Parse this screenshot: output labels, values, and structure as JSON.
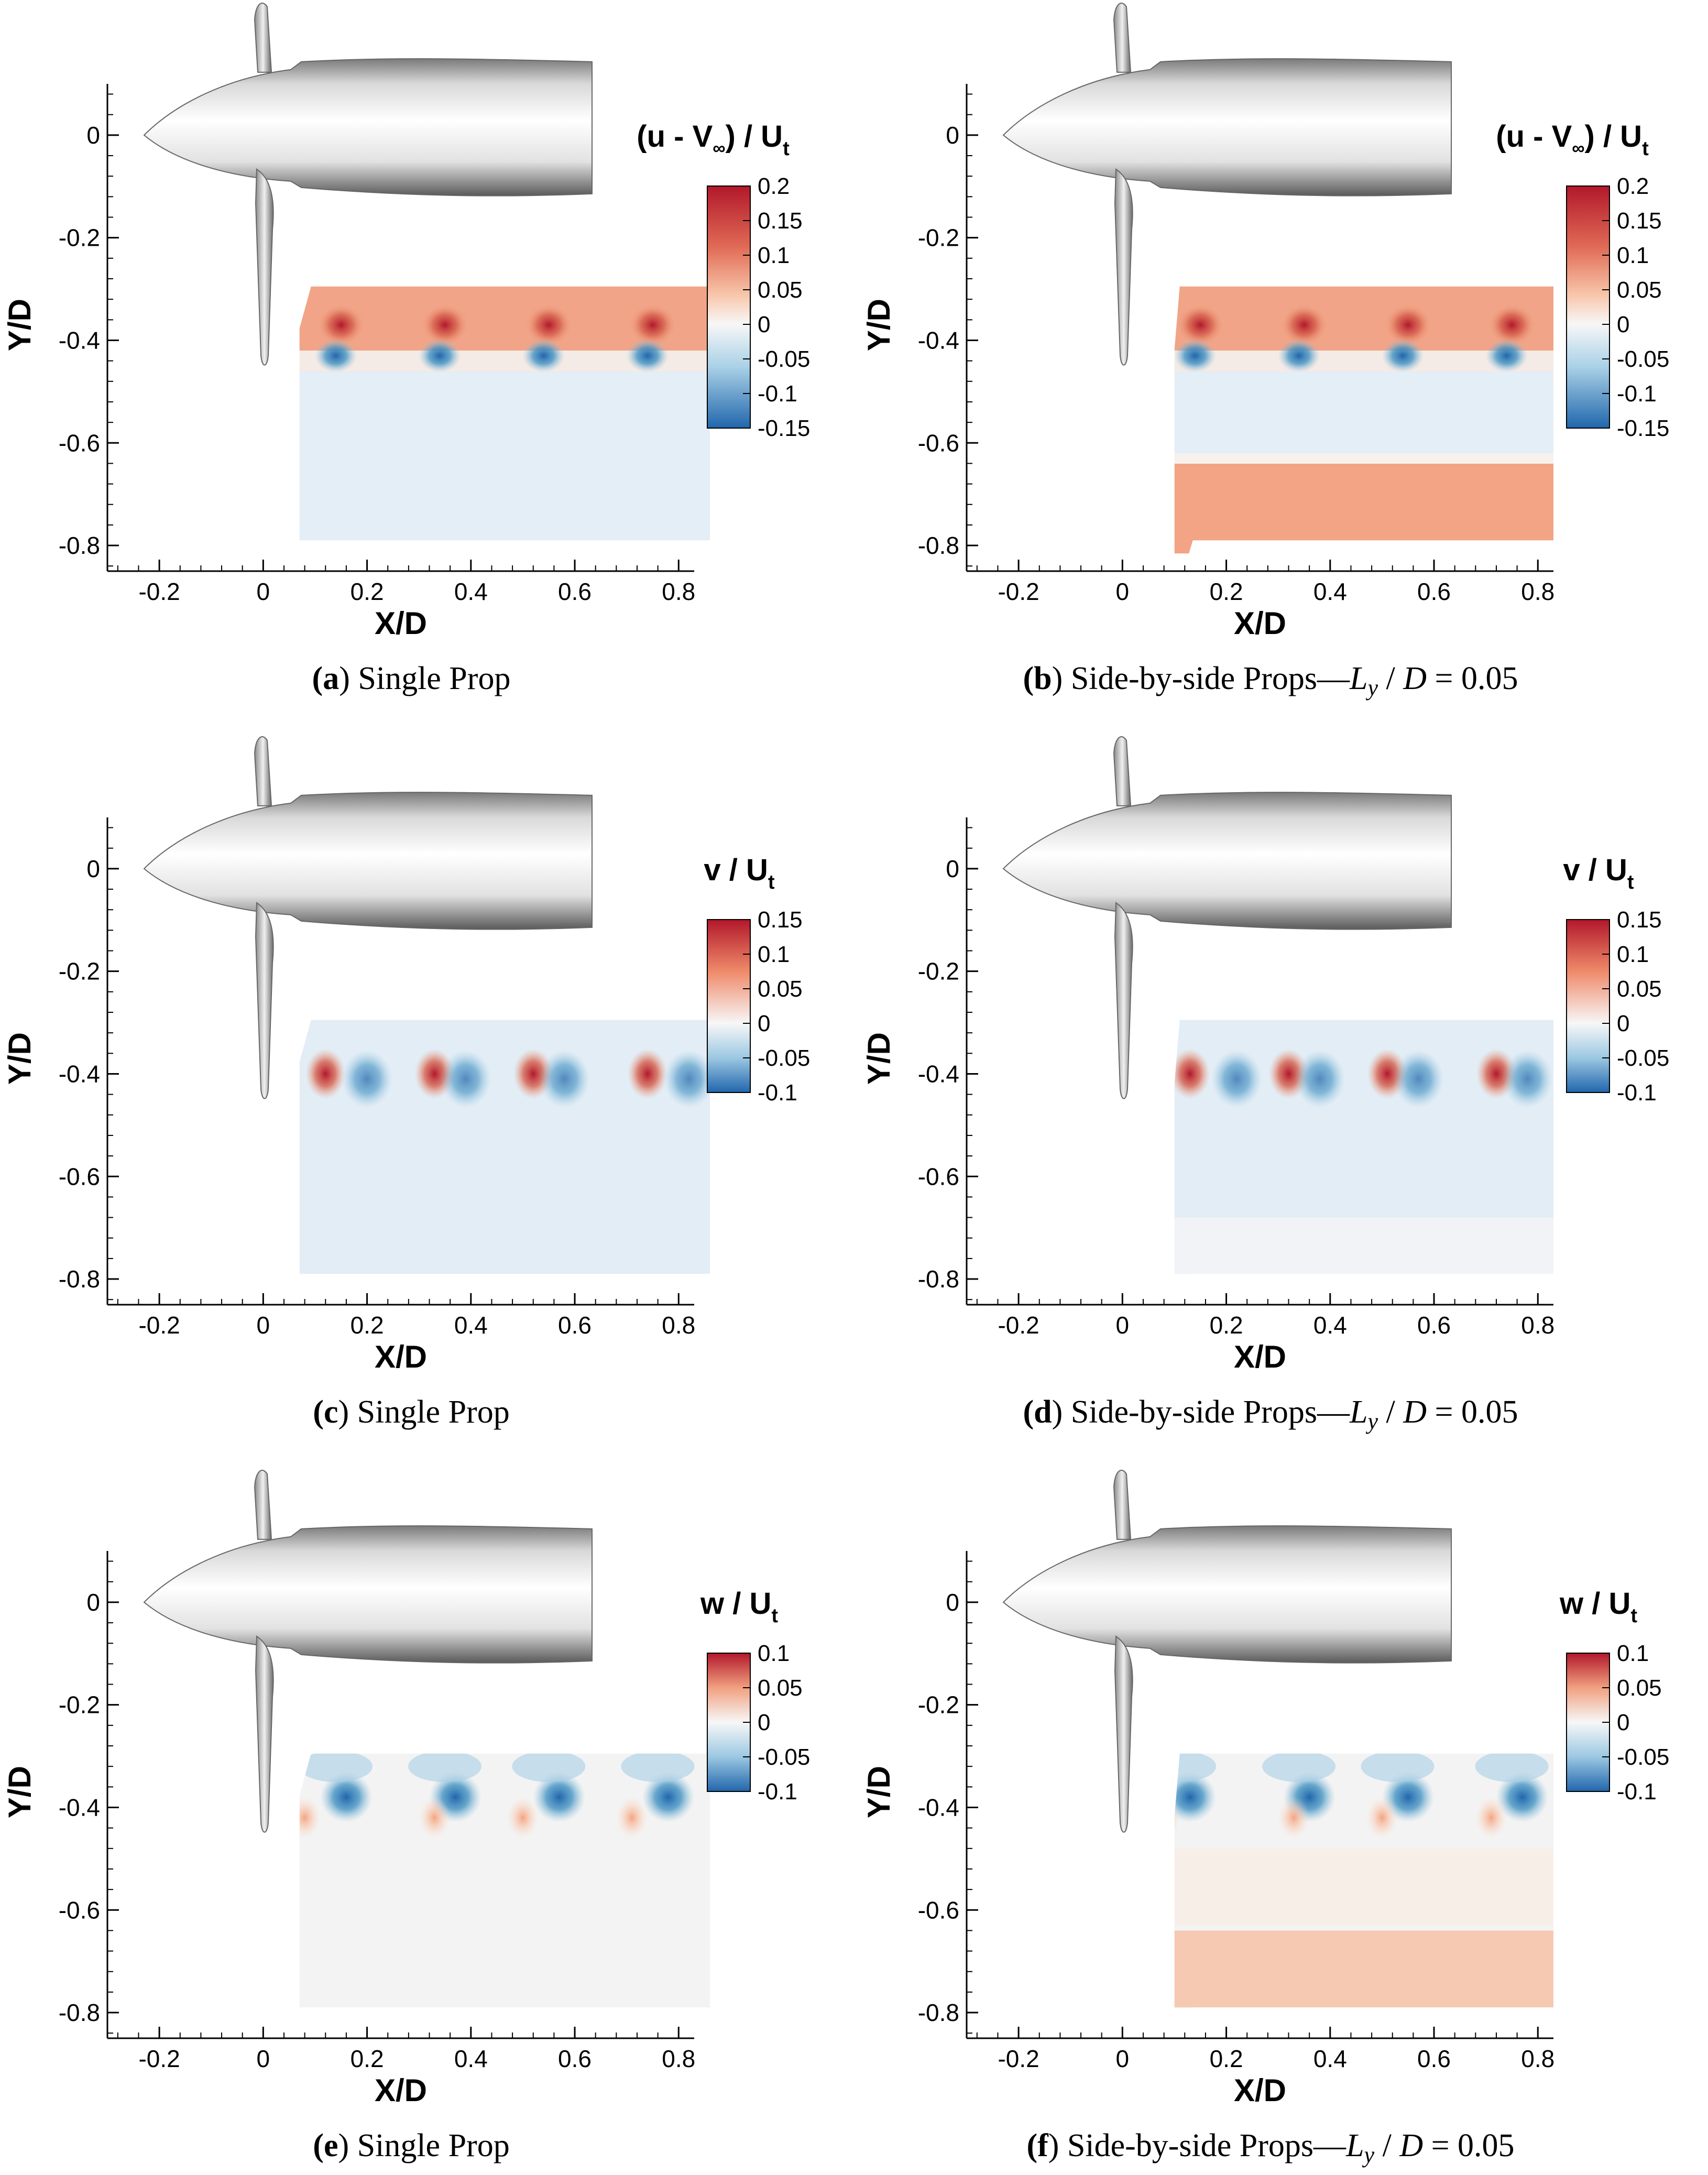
{
  "panels": [
    {
      "id": "a",
      "caption_label": "(a)",
      "caption_text": "Single Prop",
      "caption_math": "",
      "colorbar_title_main": "(u - V",
      "colorbar_title_sub": "∞",
      "colorbar_title_end": ") / U",
      "colorbar_title_sub2": "t",
      "colorbar_ticks": [
        "0.2",
        "0.15",
        "0.1",
        "0.05",
        "0",
        "-0.05",
        "-0.1",
        "-0.15"
      ],
      "variant": "single",
      "field": "u"
    },
    {
      "id": "b",
      "caption_label": "(b)",
      "caption_text": "Side-by-side Props—",
      "caption_math": "L",
      "caption_math_sub": "y",
      "caption_math_end": "/D = 0.05",
      "colorbar_title_main": "(u - V",
      "colorbar_title_sub": "∞",
      "colorbar_title_end": ") / U",
      "colorbar_title_sub2": "t",
      "colorbar_ticks": [
        "0.2",
        "0.15",
        "0.1",
        "0.05",
        "0",
        "-0.05",
        "-0.1",
        "-0.15"
      ],
      "variant": "side",
      "field": "u"
    },
    {
      "id": "c",
      "caption_label": "(c)",
      "caption_text": "Single Prop",
      "caption_math": "",
      "colorbar_title_main": "v / U",
      "colorbar_title_sub": "",
      "colorbar_title_end": "",
      "colorbar_title_sub2": "t",
      "colorbar_ticks": [
        "0.15",
        "0.1",
        "0.05",
        "0",
        "-0.05",
        "-0.1"
      ],
      "variant": "single",
      "field": "v"
    },
    {
      "id": "d",
      "caption_label": "(d)",
      "caption_text": "Side-by-side Props—",
      "caption_math": "L",
      "caption_math_sub": "y",
      "caption_math_end": "/D = 0.05",
      "colorbar_title_main": "v / U",
      "colorbar_title_sub": "",
      "colorbar_title_end": "",
      "colorbar_title_sub2": "t",
      "colorbar_ticks": [
        "0.15",
        "0.1",
        "0.05",
        "0",
        "-0.05",
        "-0.1"
      ],
      "variant": "side",
      "field": "v"
    },
    {
      "id": "e",
      "caption_label": "(e)",
      "caption_text": "Single Prop",
      "caption_math": "",
      "colorbar_title_main": "w / U",
      "colorbar_title_sub": "",
      "colorbar_title_end": "",
      "colorbar_title_sub2": "t",
      "colorbar_ticks": [
        "0.1",
        "0.05",
        "0",
        "-0.05",
        "-0.1"
      ],
      "variant": "single",
      "field": "w"
    },
    {
      "id": "f",
      "caption_label": "(f)",
      "caption_text": "Side-by-side Props—",
      "caption_math": "L",
      "caption_math_sub": "y",
      "caption_math_end": "/D = 0.05",
      "colorbar_title_main": "w / U",
      "colorbar_title_sub": "",
      "colorbar_title_end": "",
      "colorbar_title_sub2": "t",
      "colorbar_ticks": [
        "0.1",
        "0.05",
        "0",
        "-0.05",
        "-0.1"
      ],
      "variant": "side",
      "field": "w"
    }
  ],
  "axes": {
    "x_label": "X/D",
    "y_label": "Y/D",
    "x_ticks": [
      "-0.2",
      "0",
      "0.2",
      "0.4",
      "0.6",
      "0.8"
    ],
    "y_ticks": [
      "0",
      "-0.2",
      "-0.4",
      "-0.6",
      "-0.8"
    ]
  },
  "colors": {
    "red_dark": "#b2182b",
    "red": "#d6604d",
    "red_light": "#f4a582",
    "neutral": "#f7f7f7",
    "blue_light": "#d1e5f0",
    "blue": "#92c5de",
    "blue_dark": "#2166ac"
  }
}
